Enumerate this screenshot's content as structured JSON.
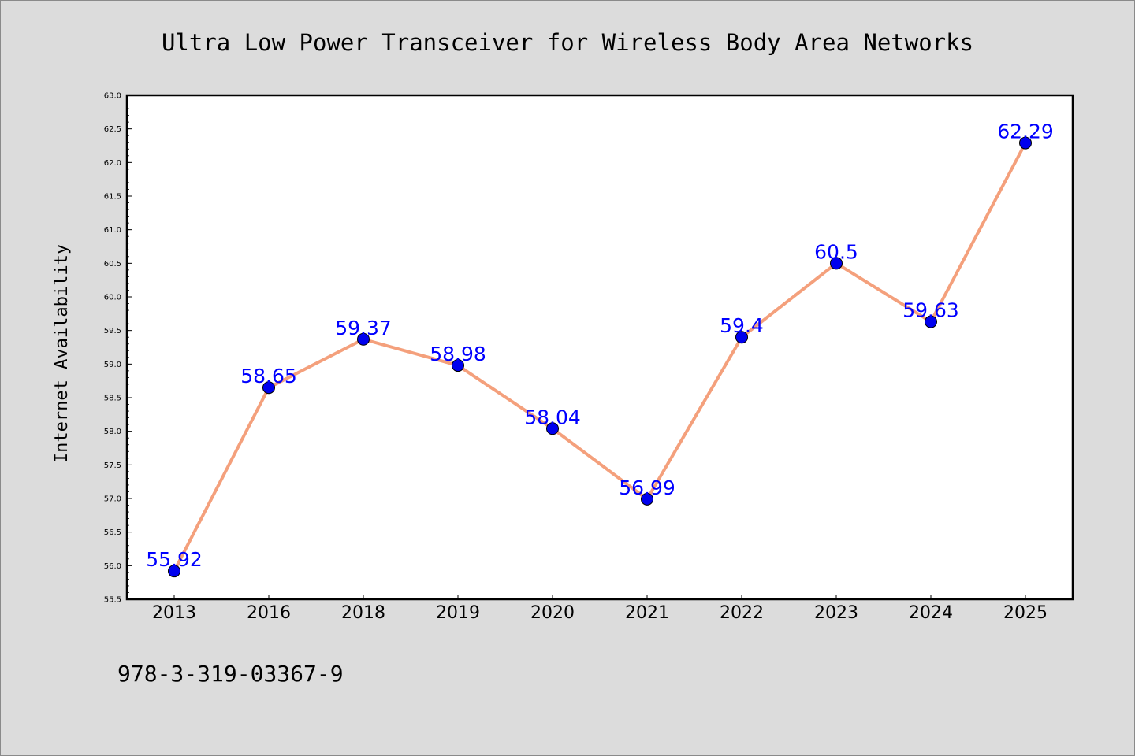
{
  "chart_data": {
    "type": "line",
    "title": "Ultra Low Power Transceiver for Wireless Body Area Networks",
    "xlabel": "",
    "ylabel": "Internet Availability",
    "categories": [
      "2013",
      "2016",
      "2018",
      "2019",
      "2020",
      "2021",
      "2022",
      "2023",
      "2024",
      "2025"
    ],
    "series": [
      {
        "values": [
          55.92,
          58.65,
          59.37,
          58.98,
          58.04,
          56.99,
          59.4,
          60.5,
          59.63,
          62.29
        ],
        "labels": [
          "55.92",
          "58.65",
          "59.37",
          "58.98",
          "58.04",
          "56.99",
          "59.4",
          "60.5",
          "59.63",
          "62.29"
        ],
        "line_color": "#f4a07c",
        "marker_color": "#0000ee"
      }
    ],
    "ylim": [
      55.5,
      63.0
    ],
    "yticks": [
      "55.5",
      "56.0",
      "56.5",
      "57.0",
      "57.5",
      "58.0",
      "58.5",
      "59.0",
      "59.5",
      "60.0",
      "60.5",
      "61.0",
      "61.5",
      "62.0",
      "62.5",
      "63.0"
    ],
    "grid": false,
    "legend": "none",
    "data_label_color": "#0000ff"
  },
  "footer": {
    "isbn": "978-3-319-03367-9"
  },
  "colors": {
    "background": "#dcdcdc",
    "plot_background": "#ffffff"
  }
}
